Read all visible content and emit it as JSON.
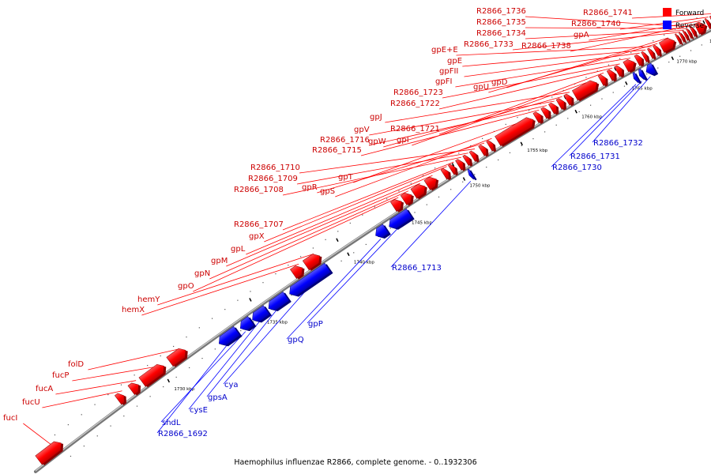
{
  "caption": "Haemophilus influenzae R2866, complete genome. - 0..1932306",
  "legend": [
    {
      "label": "Forward",
      "color": "#ff0000"
    },
    {
      "label": "Reverse",
      "color": "#0000ff"
    }
  ],
  "colors": {
    "forward": "#ff0000",
    "reverse": "#0000ff",
    "forward_label": "#cc0000",
    "reverse_label": "#0000cc",
    "backbone": "#888888"
  },
  "ticks": [
    "1730 kbp",
    "1735 kbp",
    "1740 kbp",
    "1745 kbp",
    "1750 kbp",
    "1755 kbp",
    "1760 kbp",
    "1765 kbp",
    "1770 kbp",
    "1775 kbp"
  ],
  "forward_genes": [
    "fucI",
    "fucU",
    "fucA",
    "fucP",
    "folD",
    "hemX",
    "hemY",
    "gpO",
    "gpN",
    "gpM",
    "gpL",
    "gpX",
    "R2866_1707",
    "R2866_1708",
    "R2866_1709",
    "R2866_1710",
    "gpR",
    "gpS",
    "gpT",
    "R2866_1715",
    "R2866_1716",
    "gpV",
    "gpW",
    "gpJ",
    "gpI",
    "R2866_1721",
    "R2866_1722",
    "R2866_1723",
    "gpFI",
    "gpFII",
    "gpE",
    "gpE+E",
    "gpU",
    "gpD",
    "R2866_1733",
    "R2866_1734",
    "R2866_1735",
    "R2866_1736",
    "R2866_1738",
    "gpA",
    "R2866_1740",
    "R2866_1741"
  ],
  "reverse_genes": [
    "R2866_1692",
    "shdL",
    "cysE",
    "gpsA",
    "cya",
    "gpQ",
    "gpP",
    "R2866_1713",
    "R2866_1730",
    "R2866_1731",
    "R2866_1732"
  ]
}
